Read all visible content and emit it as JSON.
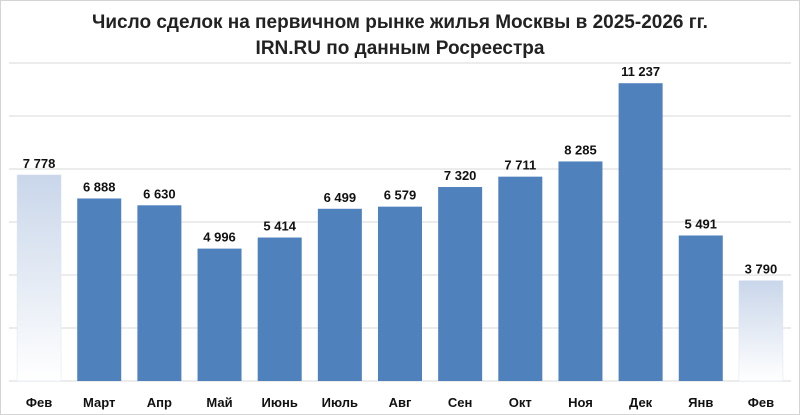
{
  "chart_data": {
    "type": "bar",
    "title": "Число сделок на первичном рынке жилья  Москвы в 2025-2026 гг.",
    "subtitle": "IRN.RU по данным Росреестра",
    "categories": [
      "Фев",
      "Март",
      "Апр",
      "Май",
      "Июнь",
      "Июль",
      "Авг",
      "Сен",
      "Окт",
      "Ноя",
      "Дек",
      "Янв",
      "Фев"
    ],
    "values": [
      7778,
      6888,
      6630,
      4996,
      5414,
      6499,
      6579,
      7320,
      7711,
      8285,
      11237,
      5491,
      3790
    ],
    "value_labels": [
      "7 778",
      "6 888",
      "6 630",
      "4 996",
      "5 414",
      "6 499",
      "6 579",
      "7 320",
      "7 711",
      "8 285",
      "11 237",
      "5 491",
      "3 790"
    ],
    "ylim": [
      0,
      12000
    ],
    "grid": true,
    "bar_color": "#4f81bd",
    "highlight_style": "gradient-fade",
    "highlight_indices": [
      0,
      12
    ]
  }
}
